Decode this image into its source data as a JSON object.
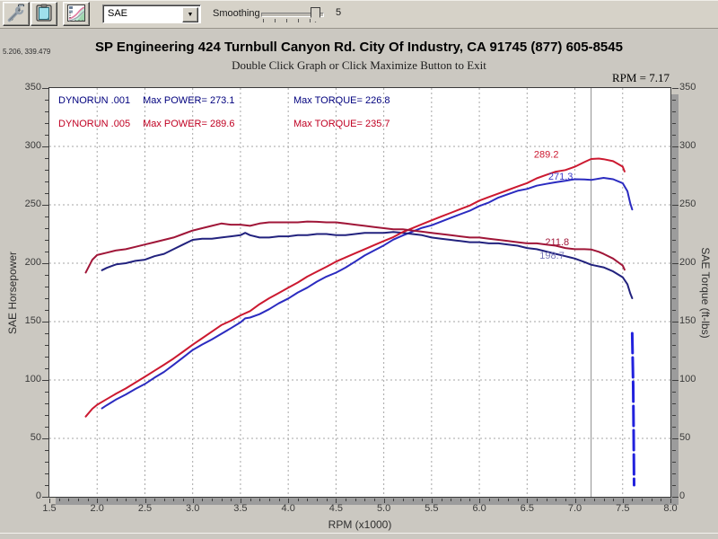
{
  "toolbar": {
    "buttons": [
      {
        "icon": "tools-icon"
      },
      {
        "icon": "clipboard-icon"
      },
      {
        "icon": "graph-icon"
      }
    ],
    "units_combo": {
      "value": "SAE"
    },
    "smoothing": {
      "label": "Smoothing",
      "value": "5"
    }
  },
  "readouts": {
    "cursor_coords": "5.206, 339.479",
    "rpm": "RPM = 7.17"
  },
  "header": {
    "title": "SP Engineering 424 Turnbull Canyon Rd. City Of Industry, CA 91745 (877) 605-8545",
    "subtitle": "Double Click Graph or Click Maximize Button to Exit"
  },
  "chart_data": {
    "type": "line",
    "xlabel": "RPM (x1000)",
    "ylabel_left": "SAE Horsepower",
    "ylabel_right": "SAE Torque (ft-lbs)",
    "xlim": [
      1.5,
      8.0
    ],
    "ylim": [
      0,
      350
    ],
    "x_tick_step": 0.5,
    "y_tick_step": 50,
    "x_ticks": [
      "1.5",
      "2.0",
      "2.5",
      "3.0",
      "3.5",
      "4.0",
      "4.5",
      "5.0",
      "5.5",
      "6.0",
      "6.5",
      "7.0",
      "7.5",
      "8.0"
    ],
    "y_ticks": [
      "0",
      "50",
      "100",
      "150",
      "200",
      "250",
      "300",
      "350"
    ],
    "grid": true,
    "grid_color": "#a6a6a6",
    "cursor_rpm": 7.17,
    "cursor_color": "#8d8d8d",
    "legend": {
      "rows": [
        {
          "run": "DYNORUN .001",
          "power": "Max POWER= 273.1",
          "torque": "Max TORQUE= 226.8",
          "color": "#00007e"
        },
        {
          "run": "DYNORUN .005",
          "power": "Max POWER= 289.6",
          "torque": "Max TORQUE= 235.7",
          "color": "#c00022"
        }
      ]
    },
    "curve_labels": [
      {
        "text": "289.2",
        "rpm": 6.83,
        "value": 290.5,
        "color": "#cc1930"
      },
      {
        "text": "271.3",
        "rpm": 6.98,
        "value": 271.5,
        "color": "#3a3ac8"
      },
      {
        "text": "211.8",
        "rpm": 6.94,
        "value": 215.5,
        "color": "#a01638"
      },
      {
        "text": "198.7",
        "rpm": 6.89,
        "value": 204.0,
        "color": "#7878b8"
      }
    ],
    "series": [
      {
        "name": "DYNORUN .001 SAE Horsepower",
        "color": "#2b2bc0",
        "width": 2,
        "points": [
          [
            2.05,
            75.7
          ],
          [
            2.1,
            78.4
          ],
          [
            2.2,
            83.4
          ],
          [
            2.3,
            87.6
          ],
          [
            2.4,
            92.3
          ],
          [
            2.5,
            96.6
          ],
          [
            2.6,
            102.0
          ],
          [
            2.7,
            106.9
          ],
          [
            2.8,
            113.0
          ],
          [
            2.9,
            119.3
          ],
          [
            3.0,
            125.7
          ],
          [
            3.1,
            130.4
          ],
          [
            3.2,
            134.7
          ],
          [
            3.3,
            139.5
          ],
          [
            3.4,
            144.4
          ],
          [
            3.5,
            149.3
          ],
          [
            3.55,
            152.8
          ],
          [
            3.6,
            153.5
          ],
          [
            3.7,
            156.4
          ],
          [
            3.8,
            160.6
          ],
          [
            3.9,
            165.6
          ],
          [
            4.0,
            169.8
          ],
          [
            4.1,
            174.9
          ],
          [
            4.2,
            179.1
          ],
          [
            4.3,
            184.2
          ],
          [
            4.4,
            188.5
          ],
          [
            4.5,
            191.9
          ],
          [
            4.6,
            196.2
          ],
          [
            4.7,
            201.4
          ],
          [
            4.8,
            206.6
          ],
          [
            4.9,
            210.9
          ],
          [
            5.0,
            215.2
          ],
          [
            5.1,
            220.2
          ],
          [
            5.2,
            223.8
          ],
          [
            5.3,
            227.1
          ],
          [
            5.4,
            230.3
          ],
          [
            5.5,
            232.5
          ],
          [
            5.6,
            235.6
          ],
          [
            5.7,
            238.8
          ],
          [
            5.8,
            241.9
          ],
          [
            5.9,
            244.9
          ],
          [
            6.0,
            249.0
          ],
          [
            6.1,
            252.0
          ],
          [
            6.2,
            256.2
          ],
          [
            6.3,
            259.1
          ],
          [
            6.4,
            262.0
          ],
          [
            6.5,
            263.6
          ],
          [
            6.6,
            266.4
          ],
          [
            6.7,
            267.9
          ],
          [
            6.8,
            269.3
          ],
          [
            6.9,
            270.6
          ],
          [
            7.0,
            271.9
          ],
          [
            7.1,
            271.7
          ],
          [
            7.17,
            271.3
          ],
          [
            7.3,
            273.1
          ],
          [
            7.4,
            271.9
          ],
          [
            7.5,
            268.5
          ],
          [
            7.55,
            261.6
          ],
          [
            7.58,
            251.1
          ],
          [
            7.6,
            246.0
          ]
        ]
      },
      {
        "name": "DYNORUN .001 SAE Torque",
        "color": "#22227e",
        "width": 2,
        "points": [
          [
            2.05,
            194
          ],
          [
            2.1,
            196
          ],
          [
            2.2,
            199
          ],
          [
            2.3,
            200
          ],
          [
            2.4,
            202
          ],
          [
            2.5,
            203
          ],
          [
            2.6,
            206
          ],
          [
            2.7,
            208
          ],
          [
            2.8,
            212
          ],
          [
            2.9,
            216
          ],
          [
            3.0,
            220
          ],
          [
            3.1,
            221
          ],
          [
            3.2,
            221
          ],
          [
            3.3,
            222
          ],
          [
            3.4,
            223
          ],
          [
            3.5,
            224
          ],
          [
            3.55,
            226
          ],
          [
            3.6,
            224
          ],
          [
            3.7,
            222
          ],
          [
            3.8,
            222
          ],
          [
            3.9,
            223
          ],
          [
            4.0,
            223
          ],
          [
            4.1,
            224
          ],
          [
            4.2,
            224
          ],
          [
            4.3,
            225
          ],
          [
            4.4,
            225
          ],
          [
            4.5,
            224
          ],
          [
            4.6,
            224
          ],
          [
            4.7,
            225
          ],
          [
            4.8,
            226
          ],
          [
            4.9,
            226
          ],
          [
            5.0,
            226
          ],
          [
            5.1,
            226.8
          ],
          [
            5.2,
            226
          ],
          [
            5.3,
            225
          ],
          [
            5.4,
            224
          ],
          [
            5.5,
            222
          ],
          [
            5.6,
            221
          ],
          [
            5.7,
            220
          ],
          [
            5.8,
            219
          ],
          [
            5.9,
            218
          ],
          [
            6.0,
            218
          ],
          [
            6.1,
            217
          ],
          [
            6.2,
            217
          ],
          [
            6.3,
            216
          ],
          [
            6.4,
            215
          ],
          [
            6.5,
            213
          ],
          [
            6.6,
            212
          ],
          [
            6.7,
            210
          ],
          [
            6.8,
            208
          ],
          [
            6.9,
            206
          ],
          [
            7.0,
            204
          ],
          [
            7.1,
            201
          ],
          [
            7.17,
            198.7
          ],
          [
            7.3,
            196.5
          ],
          [
            7.4,
            193
          ],
          [
            7.5,
            188
          ],
          [
            7.55,
            182
          ],
          [
            7.58,
            174
          ],
          [
            7.6,
            170
          ]
        ]
      },
      {
        "name": "DYNORUN .001 run-end drop",
        "color": "#2222dd",
        "width": 3,
        "dash": "22 5",
        "points": [
          [
            7.6,
            140
          ],
          [
            7.61,
            95
          ],
          [
            7.615,
            55
          ],
          [
            7.62,
            10
          ]
        ]
      },
      {
        "name": "DYNORUN .005 SAE Horsepower",
        "color": "#cc1930",
        "width": 2,
        "points": [
          [
            1.88,
            68.7
          ],
          [
            1.95,
            75.4
          ],
          [
            2.0,
            78.8
          ],
          [
            2.1,
            83.6
          ],
          [
            2.2,
            88.4
          ],
          [
            2.3,
            92.8
          ],
          [
            2.4,
            97.8
          ],
          [
            2.5,
            102.8
          ],
          [
            2.6,
            107.9
          ],
          [
            2.7,
            113.1
          ],
          [
            2.8,
            118.4
          ],
          [
            2.9,
            124.2
          ],
          [
            3.0,
            130.2
          ],
          [
            3.1,
            135.8
          ],
          [
            3.2,
            141.4
          ],
          [
            3.3,
            147.0
          ],
          [
            3.4,
            150.8
          ],
          [
            3.5,
            155.3
          ],
          [
            3.6,
            159.0
          ],
          [
            3.7,
            164.9
          ],
          [
            3.8,
            170.0
          ],
          [
            3.9,
            174.5
          ],
          [
            4.0,
            179.0
          ],
          [
            4.1,
            183.5
          ],
          [
            4.2,
            188.5
          ],
          [
            4.3,
            192.8
          ],
          [
            4.4,
            196.9
          ],
          [
            4.5,
            201.4
          ],
          [
            4.6,
            204.9
          ],
          [
            4.7,
            208.5
          ],
          [
            4.8,
            212.0
          ],
          [
            4.9,
            215.5
          ],
          [
            5.0,
            219.0
          ],
          [
            5.1,
            222.4
          ],
          [
            5.2,
            226.7
          ],
          [
            5.3,
            230.1
          ],
          [
            5.4,
            233.4
          ],
          [
            5.5,
            236.7
          ],
          [
            5.6,
            239.9
          ],
          [
            5.7,
            243.1
          ],
          [
            5.8,
            246.3
          ],
          [
            5.9,
            249.4
          ],
          [
            6.0,
            253.6
          ],
          [
            6.1,
            256.7
          ],
          [
            6.2,
            259.7
          ],
          [
            6.3,
            262.7
          ],
          [
            6.4,
            265.7
          ],
          [
            6.5,
            268.6
          ],
          [
            6.6,
            272.7
          ],
          [
            6.7,
            275.6
          ],
          [
            6.8,
            278.4
          ],
          [
            6.9,
            279.8
          ],
          [
            7.0,
            282.6
          ],
          [
            7.1,
            286.6
          ],
          [
            7.17,
            289.2
          ],
          [
            7.25,
            289.6
          ],
          [
            7.3,
            289.1
          ],
          [
            7.4,
            287.4
          ],
          [
            7.45,
            285.1
          ],
          [
            7.5,
            282.7
          ],
          [
            7.52,
            278.5
          ]
        ]
      },
      {
        "name": "DYNORUN .005 SAE Torque",
        "color": "#a01638",
        "width": 2,
        "points": [
          [
            1.88,
            192
          ],
          [
            1.95,
            203
          ],
          [
            2.0,
            207
          ],
          [
            2.1,
            209
          ],
          [
            2.2,
            211
          ],
          [
            2.3,
            212
          ],
          [
            2.4,
            214
          ],
          [
            2.5,
            216
          ],
          [
            2.6,
            218
          ],
          [
            2.7,
            220
          ],
          [
            2.8,
            222
          ],
          [
            2.9,
            225
          ],
          [
            3.0,
            228
          ],
          [
            3.1,
            230
          ],
          [
            3.2,
            232
          ],
          [
            3.3,
            234
          ],
          [
            3.4,
            233
          ],
          [
            3.5,
            233
          ],
          [
            3.6,
            232
          ],
          [
            3.7,
            234
          ],
          [
            3.8,
            235
          ],
          [
            3.9,
            235
          ],
          [
            4.0,
            235
          ],
          [
            4.1,
            235
          ],
          [
            4.2,
            235.7
          ],
          [
            4.3,
            235.5
          ],
          [
            4.4,
            235
          ],
          [
            4.5,
            235
          ],
          [
            4.6,
            234
          ],
          [
            4.7,
            233
          ],
          [
            4.8,
            232
          ],
          [
            4.9,
            231
          ],
          [
            5.0,
            230
          ],
          [
            5.1,
            229
          ],
          [
            5.2,
            229
          ],
          [
            5.3,
            228
          ],
          [
            5.4,
            227
          ],
          [
            5.5,
            226
          ],
          [
            5.6,
            225
          ],
          [
            5.7,
            224
          ],
          [
            5.8,
            223
          ],
          [
            5.9,
            222
          ],
          [
            6.0,
            222
          ],
          [
            6.1,
            221
          ],
          [
            6.2,
            220
          ],
          [
            6.3,
            219
          ],
          [
            6.4,
            218
          ],
          [
            6.5,
            217
          ],
          [
            6.6,
            217
          ],
          [
            6.7,
            216
          ],
          [
            6.8,
            215
          ],
          [
            6.9,
            213
          ],
          [
            7.0,
            212
          ],
          [
            7.1,
            212
          ],
          [
            7.17,
            211.8
          ],
          [
            7.25,
            209.8
          ],
          [
            7.3,
            208
          ],
          [
            7.4,
            204
          ],
          [
            7.45,
            201
          ],
          [
            7.5,
            198
          ],
          [
            7.52,
            194.5
          ]
        ]
      }
    ]
  }
}
